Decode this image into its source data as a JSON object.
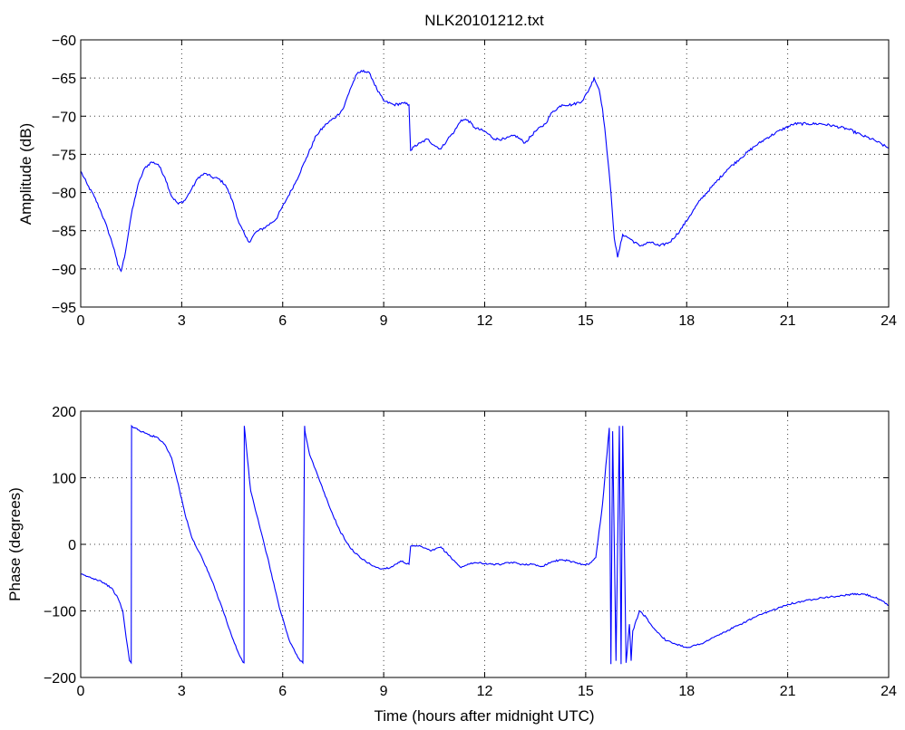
{
  "chart_data": [
    {
      "type": "line",
      "title": "NLK20101212.txt",
      "xlabel": "",
      "ylabel": "Amplitude (dB)",
      "xlim": [
        0,
        24
      ],
      "ylim": [
        -95,
        -60
      ],
      "xticks": [
        0,
        3,
        6,
        9,
        12,
        15,
        18,
        21,
        24
      ],
      "yticks": [
        -95,
        -90,
        -85,
        -80,
        -75,
        -70,
        -65,
        -60
      ],
      "grid": true,
      "color": "#0000ff",
      "series": [
        {
          "x": [
            0,
            0.2,
            0.4,
            0.6,
            0.8,
            1.0,
            1.1,
            1.2,
            1.3,
            1.5,
            1.7,
            1.9,
            2.1,
            2.3,
            2.5,
            2.7,
            2.9,
            3.1,
            3.3,
            3.5,
            3.7,
            3.9,
            4.1,
            4.3,
            4.5,
            4.7,
            4.9,
            5.0,
            5.2,
            5.5,
            5.8,
            6.1,
            6.4,
            6.7,
            7.0,
            7.3,
            7.6,
            7.8,
            8.0,
            8.2,
            8.4,
            8.6,
            8.8,
            9.0,
            9.3,
            9.6,
            9.75,
            9.8,
            9.9,
            10.1,
            10.3,
            10.5,
            10.7,
            10.9,
            11.1,
            11.3,
            11.5,
            11.7,
            12.0,
            12.3,
            12.6,
            12.9,
            13.2,
            13.5,
            13.8,
            14.0,
            14.3,
            14.6,
            14.9,
            15.1,
            15.25,
            15.4,
            15.5,
            15.6,
            15.75,
            15.85,
            15.95,
            16.1,
            16.3,
            16.6,
            16.9,
            17.2,
            17.5,
            17.8,
            18.1,
            18.4,
            18.8,
            19.2,
            19.6,
            20.0,
            20.4,
            20.8,
            21.2,
            21.6,
            22.0,
            22.4,
            22.8,
            23.2,
            23.6,
            24.0
          ],
          "y": [
            -77.2,
            -79.0,
            -80.5,
            -82.5,
            -84.8,
            -87.5,
            -89.5,
            -90.3,
            -88.5,
            -83.0,
            -79.0,
            -76.8,
            -76.0,
            -76.3,
            -78.0,
            -80.5,
            -81.5,
            -81.0,
            -79.5,
            -78.0,
            -77.5,
            -78.0,
            -78.2,
            -79.0,
            -81.0,
            -84.0,
            -85.8,
            -86.5,
            -85.2,
            -84.5,
            -83.5,
            -81.0,
            -78.5,
            -75.5,
            -72.5,
            -71.0,
            -70.0,
            -69.0,
            -66.5,
            -64.5,
            -64.0,
            -64.5,
            -66.5,
            -68.0,
            -68.5,
            -68.3,
            -68.5,
            -74.5,
            -74.0,
            -73.5,
            -73.0,
            -73.8,
            -74.3,
            -73.0,
            -72.0,
            -70.5,
            -70.5,
            -71.5,
            -72.0,
            -73.0,
            -73.0,
            -72.5,
            -73.5,
            -72.0,
            -71.0,
            -69.5,
            -68.5,
            -68.5,
            -68.0,
            -66.5,
            -65.0,
            -66.5,
            -69.0,
            -73.0,
            -80.0,
            -86.0,
            -88.5,
            -85.5,
            -86.0,
            -87.0,
            -86.5,
            -87.0,
            -86.5,
            -85.0,
            -83.0,
            -81.0,
            -79.0,
            -77.0,
            -75.5,
            -74.0,
            -72.8,
            -71.8,
            -71.0,
            -71.0,
            -71.0,
            -71.3,
            -71.7,
            -72.5,
            -73.2,
            -74.2
          ]
        }
      ]
    },
    {
      "type": "line",
      "title": "",
      "xlabel": "Time (hours after midnight UTC)",
      "ylabel": "Phase (degrees)",
      "xlim": [
        0,
        24
      ],
      "ylim": [
        -200,
        200
      ],
      "xticks": [
        0,
        3,
        6,
        9,
        12,
        15,
        18,
        21,
        24
      ],
      "yticks": [
        -200,
        -100,
        0,
        100,
        200
      ],
      "grid": true,
      "color": "#0000ff",
      "series": [
        {
          "x": [
            0,
            0.3,
            0.6,
            0.9,
            1.1,
            1.25,
            1.35,
            1.45,
            1.5,
            1.51,
            1.7,
            2.0,
            2.3,
            2.5,
            2.7,
            2.9,
            3.1,
            3.3,
            3.6,
            3.9,
            4.2,
            4.5,
            4.7,
            4.8,
            4.85,
            4.86,
            4.95,
            5.05,
            5.15,
            5.3,
            5.6,
            5.9,
            6.2,
            6.45,
            6.6,
            6.65,
            6.66,
            6.8,
            7.1,
            7.4,
            7.7,
            8.0,
            8.3,
            8.6,
            8.9,
            9.2,
            9.5,
            9.75,
            9.8,
            10.1,
            10.4,
            10.7,
            11.0,
            11.3,
            11.6,
            11.9,
            12.2,
            12.5,
            12.8,
            13.1,
            13.4,
            13.7,
            14.0,
            14.3,
            14.6,
            14.9,
            15.1,
            15.3,
            15.5,
            15.7,
            15.75,
            15.8,
            15.9,
            16.0,
            16.05,
            16.1,
            16.2,
            16.3,
            16.35,
            16.4,
            16.6,
            16.8,
            17.0,
            17.2,
            17.4,
            17.7,
            18.0,
            18.4,
            18.8,
            19.2,
            19.6,
            20.0,
            20.5,
            21.0,
            21.5,
            22.0,
            22.5,
            22.9,
            23.3,
            23.7,
            24.0
          ],
          "y": [
            -45,
            -50,
            -55,
            -65,
            -80,
            -100,
            -140,
            -175,
            -178,
            178,
            172,
            165,
            160,
            150,
            130,
            90,
            45,
            10,
            -20,
            -55,
            -95,
            -140,
            -165,
            -175,
            -178,
            178,
            130,
            80,
            60,
            30,
            -30,
            -95,
            -145,
            -170,
            -178,
            178,
            170,
            135,
            95,
            55,
            20,
            -5,
            -20,
            -30,
            -37,
            -35,
            -25,
            -30,
            -3,
            -3,
            -10,
            -4,
            -20,
            -35,
            -28,
            -28,
            -30,
            -30,
            -27,
            -30,
            -30,
            -33,
            -26,
            -23,
            -26,
            -30,
            -30,
            -20,
            60,
            175,
            -180,
            170,
            -175,
            178,
            -180,
            178,
            -178,
            -120,
            -175,
            -130,
            -100,
            -110,
            -125,
            -135,
            -145,
            -150,
            -155,
            -150,
            -140,
            -130,
            -120,
            -110,
            -100,
            -90,
            -85,
            -80,
            -78,
            -75,
            -75,
            -82,
            -92
          ]
        }
      ]
    }
  ]
}
